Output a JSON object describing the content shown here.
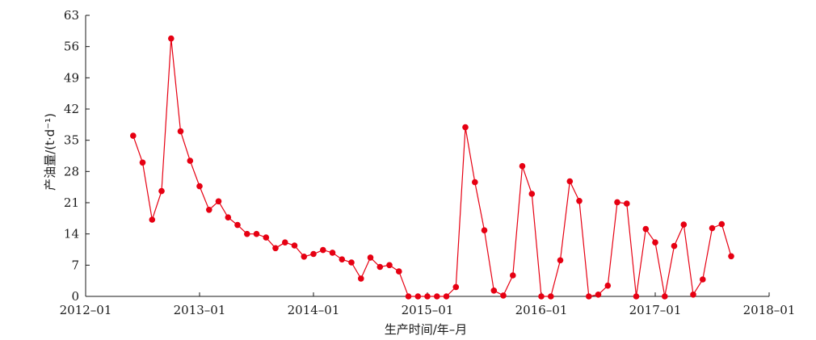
{
  "chart_data": {
    "type": "line",
    "xlabel": "生产时间/年–月",
    "ylabel": "产油量/(t·d⁻¹)",
    "ylim": [
      0,
      63
    ],
    "yticks": [
      "0",
      "7",
      "14",
      "21",
      "28",
      "35",
      "42",
      "49",
      "56",
      "63"
    ],
    "xlim": [
      "2012-01",
      "2018-01"
    ],
    "xticks": [
      "2012–01",
      "2013–01",
      "2014–01",
      "2015–01",
      "2016–01",
      "2017–01",
      "2018–01"
    ],
    "series": [
      {
        "color": "#e60012",
        "x": [
          "2012-06",
          "2012-07",
          "2012-08",
          "2012-09",
          "2012-10",
          "2012-11",
          "2012-12",
          "2013-01",
          "2013-02",
          "2013-03",
          "2013-04",
          "2013-05",
          "2013-06",
          "2013-07",
          "2013-08",
          "2013-09",
          "2013-10",
          "2013-11",
          "2013-12",
          "2014-01",
          "2014-02",
          "2014-03",
          "2014-04",
          "2014-05",
          "2014-06",
          "2014-07",
          "2014-08",
          "2014-09",
          "2014-10",
          "2014-11",
          "2014-12",
          "2015-01",
          "2015-02",
          "2015-03",
          "2015-04",
          "2015-05",
          "2015-06",
          "2015-07",
          "2015-08",
          "2015-09",
          "2015-10",
          "2015-11",
          "2015-12",
          "2016-01",
          "2016-02",
          "2016-03",
          "2016-04",
          "2016-05",
          "2016-06",
          "2016-07",
          "2016-08",
          "2016-09",
          "2016-10",
          "2016-11",
          "2016-12",
          "2017-01",
          "2017-02",
          "2017-03",
          "2017-04",
          "2017-05",
          "2017-06",
          "2017-07",
          "2017-08",
          "2017-09"
        ],
        "values": [
          36.0,
          30.0,
          17.2,
          23.6,
          57.8,
          37.0,
          30.4,
          24.7,
          19.4,
          21.3,
          17.7,
          16.0,
          14.0,
          14.0,
          13.2,
          10.8,
          12.1,
          11.4,
          8.9,
          9.5,
          10.4,
          9.8,
          8.3,
          7.6,
          4.0,
          8.7,
          6.6,
          7.0,
          5.6,
          0.0,
          0.0,
          0.0,
          0.0,
          0.0,
          2.1,
          37.9,
          25.6,
          14.8,
          1.3,
          0.2,
          4.7,
          29.2,
          23.0,
          0.0,
          0.0,
          8.1,
          25.8,
          21.4,
          0.0,
          0.4,
          2.4,
          21.1,
          20.8,
          0.0,
          15.1,
          12.1,
          0.0,
          11.3,
          16.1,
          0.4,
          3.8,
          15.3,
          16.2,
          9.0
        ]
      }
    ]
  }
}
